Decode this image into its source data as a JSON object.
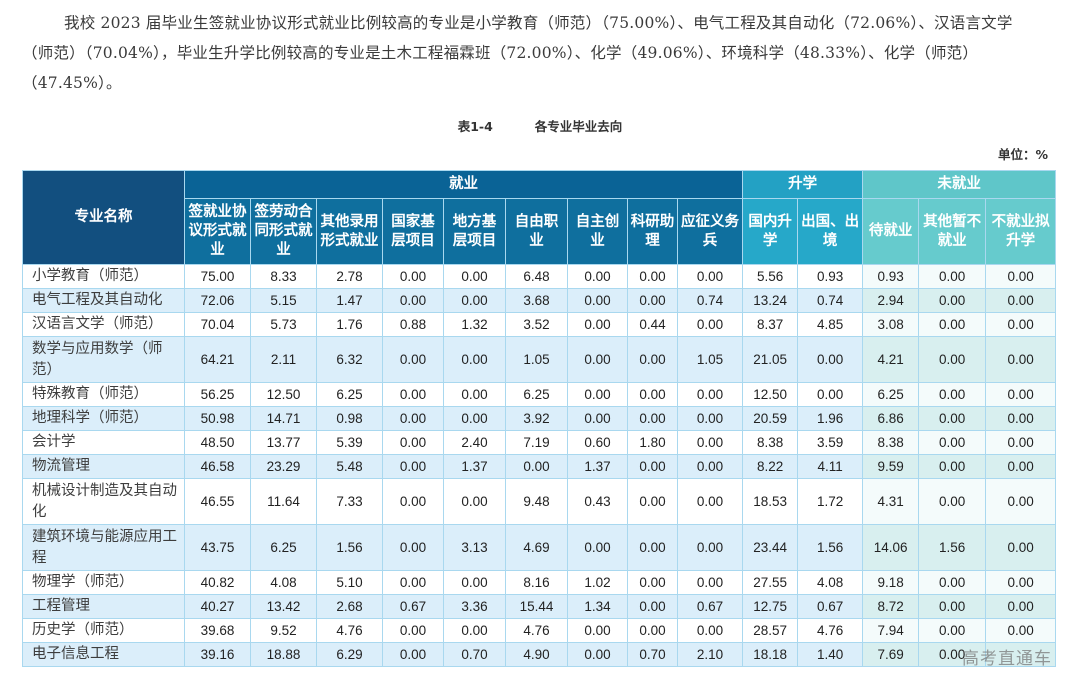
{
  "paragraph": {
    "lines": [
      "我校 2023 届毕业生签就业协议形式就业比例较高的专业是小学教育（师范）（75.00%）、电气工程及其自动化（72.06%）、汉语言文学",
      "（师范）（70.04%），毕业生升学比例较高的专业是土木工程福霖班（72.00%）、化学（49.06%）、环境科学（48.33%）、化学（师范）",
      "（47.45%）。"
    ]
  },
  "table": {
    "caption_label": "表1-4",
    "caption_title": "各专业毕业去向",
    "unit": "单位：%",
    "name_header": "专业名称",
    "groups": [
      {
        "label": "就业",
        "span": 9
      },
      {
        "label": "升学",
        "span": 2
      },
      {
        "label": "未就业",
        "span": 3
      }
    ],
    "columns": [
      "签就业协议形式就业",
      "签劳动合同形式就业",
      "其他录用形式就业",
      "国家基层项目",
      "地方基层项目",
      "自由职业",
      "自主创业",
      "科研助理",
      "应征义务兵",
      "国内升学",
      "出国、出境",
      "待就业",
      "其他暂不就业",
      "不就业拟升学"
    ],
    "rows": [
      {
        "name": "小学教育（师范）",
        "values": [
          "75.00",
          "8.33",
          "2.78",
          "0.00",
          "0.00",
          "6.48",
          "0.00",
          "0.00",
          "0.00",
          "5.56",
          "0.93",
          "0.93",
          "0.00",
          "0.00"
        ]
      },
      {
        "name": "电气工程及其自动化",
        "values": [
          "72.06",
          "5.15",
          "1.47",
          "0.00",
          "0.00",
          "3.68",
          "0.00",
          "0.00",
          "0.74",
          "13.24",
          "0.74",
          "2.94",
          "0.00",
          "0.00"
        ]
      },
      {
        "name": "汉语言文学（师范）",
        "values": [
          "70.04",
          "5.73",
          "1.76",
          "0.88",
          "1.32",
          "3.52",
          "0.00",
          "0.44",
          "0.00",
          "8.37",
          "4.85",
          "3.08",
          "0.00",
          "0.00"
        ]
      },
      {
        "name": "数学与应用数学（师范）",
        "values": [
          "64.21",
          "2.11",
          "6.32",
          "0.00",
          "0.00",
          "1.05",
          "0.00",
          "0.00",
          "1.05",
          "21.05",
          "0.00",
          "4.21",
          "0.00",
          "0.00"
        ]
      },
      {
        "name": "特殊教育（师范）",
        "values": [
          "56.25",
          "12.50",
          "6.25",
          "0.00",
          "0.00",
          "6.25",
          "0.00",
          "0.00",
          "0.00",
          "12.50",
          "0.00",
          "6.25",
          "0.00",
          "0.00"
        ]
      },
      {
        "name": "地理科学（师范）",
        "values": [
          "50.98",
          "14.71",
          "0.98",
          "0.00",
          "0.00",
          "3.92",
          "0.00",
          "0.00",
          "0.00",
          "20.59",
          "1.96",
          "6.86",
          "0.00",
          "0.00"
        ]
      },
      {
        "name": "会计学",
        "values": [
          "48.50",
          "13.77",
          "5.39",
          "0.00",
          "2.40",
          "7.19",
          "0.60",
          "1.80",
          "0.00",
          "8.38",
          "3.59",
          "8.38",
          "0.00",
          "0.00"
        ]
      },
      {
        "name": "物流管理",
        "values": [
          "46.58",
          "23.29",
          "5.48",
          "0.00",
          "1.37",
          "0.00",
          "1.37",
          "0.00",
          "0.00",
          "8.22",
          "4.11",
          "9.59",
          "0.00",
          "0.00"
        ]
      },
      {
        "name": "机械设计制造及其自动化",
        "values": [
          "46.55",
          "11.64",
          "7.33",
          "0.00",
          "0.00",
          "9.48",
          "0.43",
          "0.00",
          "0.00",
          "18.53",
          "1.72",
          "4.31",
          "0.00",
          "0.00"
        ]
      },
      {
        "name": "建筑环境与能源应用工程",
        "values": [
          "43.75",
          "6.25",
          "1.56",
          "0.00",
          "3.13",
          "4.69",
          "0.00",
          "0.00",
          "0.00",
          "23.44",
          "1.56",
          "14.06",
          "1.56",
          "0.00"
        ]
      },
      {
        "name": "物理学（师范）",
        "values": [
          "40.82",
          "4.08",
          "5.10",
          "0.00",
          "0.00",
          "8.16",
          "1.02",
          "0.00",
          "0.00",
          "27.55",
          "4.08",
          "9.18",
          "0.00",
          "0.00"
        ]
      },
      {
        "name": "工程管理",
        "values": [
          "40.27",
          "13.42",
          "2.68",
          "0.67",
          "3.36",
          "15.44",
          "1.34",
          "0.00",
          "0.67",
          "12.75",
          "0.67",
          "8.72",
          "0.00",
          "0.00"
        ]
      },
      {
        "name": "历史学（师范）",
        "values": [
          "39.68",
          "9.52",
          "4.76",
          "0.00",
          "0.00",
          "4.76",
          "0.00",
          "0.00",
          "0.00",
          "28.57",
          "4.76",
          "7.94",
          "0.00",
          "0.00"
        ]
      },
      {
        "name": "电子信息工程",
        "values": [
          "39.16",
          "18.88",
          "6.29",
          "0.00",
          "0.70",
          "4.90",
          "0.00",
          "0.70",
          "2.10",
          "18.18",
          "1.40",
          "7.69",
          "0.00",
          ""
        ]
      }
    ]
  },
  "watermark": "高考直通车",
  "colors": {
    "name_header": "#124f7f",
    "employment_header": "#0a6396",
    "further_study_header": "#23a1c4",
    "unemployed_header": "#5fc6c9",
    "row_alt": "#dbeefa",
    "border": "#a9d8ef"
  }
}
